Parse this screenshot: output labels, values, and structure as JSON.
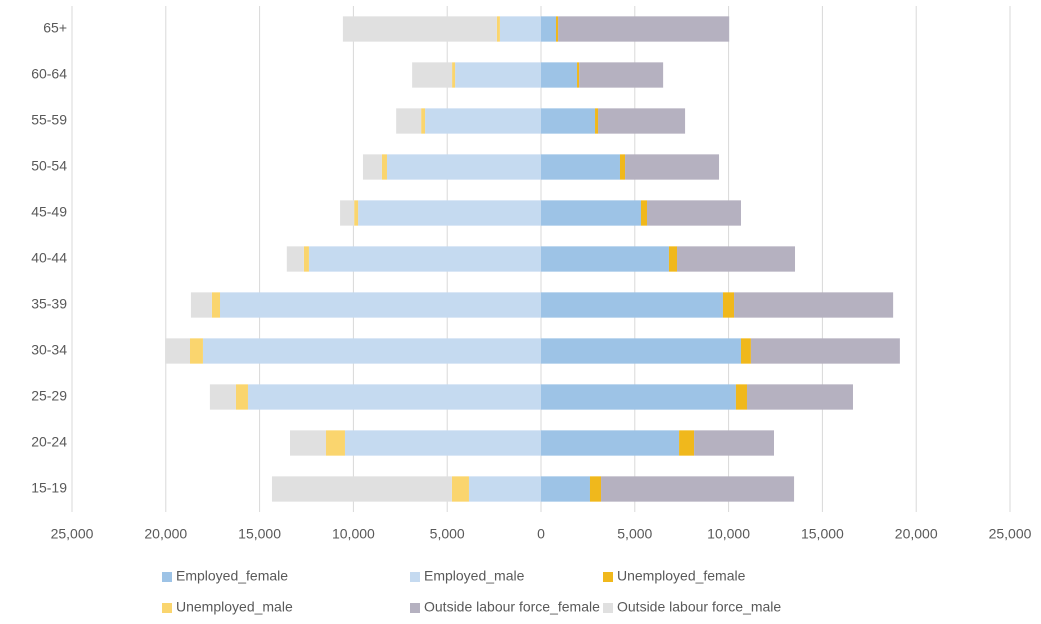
{
  "chart_data": {
    "type": "bar",
    "orientation": "horizontal",
    "stacked": true,
    "categories": [
      "15-19",
      "20-24",
      "25-29",
      "30-34",
      "35-39",
      "40-44",
      "45-49",
      "50-54",
      "55-59",
      "60-64",
      "65+"
    ],
    "series": [
      {
        "name": "Employed_female",
        "color": "#9dc3e6",
        "values": [
          2610,
          7360,
          10390,
          10660,
          9700,
          6820,
          5330,
          4210,
          2880,
          1920,
          800
        ]
      },
      {
        "name": "Employed_male",
        "color": "#c5daf0",
        "values": [
          -3840,
          -10450,
          -15620,
          -18020,
          -17110,
          -12370,
          -9750,
          -8210,
          -6180,
          -4580,
          -2190
        ]
      },
      {
        "name": "Unemployed_female",
        "color": "#f0b81c",
        "values": [
          590,
          800,
          590,
          530,
          590,
          430,
          320,
          270,
          160,
          110,
          110
        ]
      },
      {
        "name": "Unemployed_male",
        "color": "#fad56e",
        "values": [
          -910,
          -1010,
          -640,
          -690,
          -430,
          -270,
          -210,
          -270,
          -210,
          -160,
          -160
        ]
      },
      {
        "name": "Outside labour force_female",
        "color": "#b5b1c0",
        "values": [
          10290,
          4260,
          5650,
          7940,
          8480,
          6290,
          5010,
          5010,
          4640,
          4480,
          9120
        ]
      },
      {
        "name": "Outside labour force_male",
        "color": "#e0e0e0",
        "values": [
          -9590,
          -1920,
          -1390,
          -1330,
          -1120,
          -910,
          -750,
          -1010,
          -1330,
          -2130,
          -8210
        ]
      }
    ],
    "xlim": [
      -25000,
      25000
    ],
    "xticks": [
      {
        "value": -25000,
        "label": "25,000"
      },
      {
        "value": -20000,
        "label": "20,000"
      },
      {
        "value": -15000,
        "label": "15,000"
      },
      {
        "value": -10000,
        "label": "10,000"
      },
      {
        "value": -5000,
        "label": "5,000"
      },
      0,
      {
        "value": 5000,
        "label": "5,000"
      },
      {
        "value": 10000,
        "label": "10,000"
      },
      {
        "value": 15000,
        "label": "15,000"
      },
      {
        "value": 20000,
        "label": "20,000"
      },
      {
        "value": 25000,
        "label": "25,000"
      }
    ],
    "grid": true,
    "legend": "bottom"
  }
}
